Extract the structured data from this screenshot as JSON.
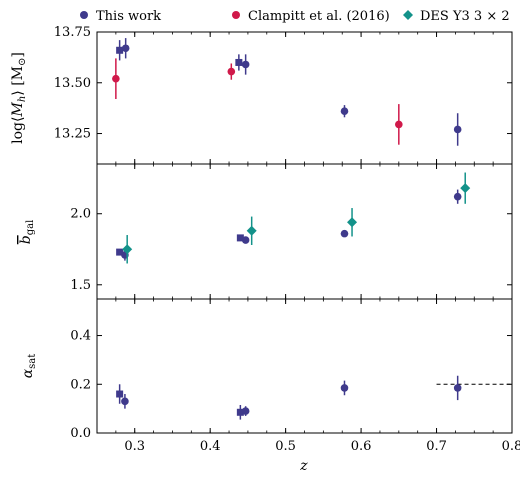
{
  "legend": [
    {
      "name": "This work",
      "color": "#3f3a8c",
      "marker": "circle"
    },
    {
      "name": "Clampitt et al. (2016)",
      "color": "#d0194a",
      "marker": "circle"
    },
    {
      "name": "DES Y3 3 × 2",
      "color": "#13928a",
      "marker": "diamond"
    }
  ],
  "chart_data": [
    {
      "type": "scatter",
      "panel": "top",
      "ylabel": "log⟨M_h⟩ [M⊙]",
      "xlabel": "",
      "xlim": [
        0.25,
        0.8
      ],
      "ylim": [
        13.1,
        13.75
      ],
      "yticks": [
        "13.25",
        "13.50",
        "13.75"
      ],
      "series": [
        {
          "name": "This work",
          "marker": "square",
          "color": "#3f3a8c",
          "points": [
            {
              "x": 0.28,
              "y": 13.66,
              "err": 0.05
            },
            {
              "x": 0.438,
              "y": 13.6,
              "err": 0.04
            }
          ]
        },
        {
          "name": "This work",
          "marker": "circle",
          "color": "#3f3a8c",
          "points": [
            {
              "x": 0.288,
              "y": 13.67,
              "err": 0.05
            },
            {
              "x": 0.447,
              "y": 13.59,
              "err": 0.05
            },
            {
              "x": 0.578,
              "y": 13.36,
              "err": 0.03
            },
            {
              "x": 0.728,
              "y": 13.27,
              "err": 0.08
            }
          ]
        },
        {
          "name": "Clampitt et al. (2016)",
          "marker": "circle",
          "color": "#d0194a",
          "points": [
            {
              "x": 0.275,
              "y": 13.52,
              "err": 0.1
            },
            {
              "x": 0.428,
              "y": 13.555,
              "err": 0.04
            },
            {
              "x": 0.65,
              "y": 13.295,
              "err": 0.1
            }
          ]
        }
      ]
    },
    {
      "type": "scatter",
      "panel": "middle",
      "ylabel": "b̄_gal",
      "xlabel": "",
      "xlim": [
        0.25,
        0.8
      ],
      "ylim": [
        1.4,
        2.35
      ],
      "yticks": [
        "1.5",
        "2.0"
      ],
      "series": [
        {
          "name": "This work",
          "marker": "square",
          "color": "#3f3a8c",
          "points": [
            {
              "x": 0.28,
              "y": 1.73,
              "err": 0.02
            },
            {
              "x": 0.44,
              "y": 1.83,
              "err": 0.02
            }
          ]
        },
        {
          "name": "This work",
          "marker": "circle",
          "color": "#3f3a8c",
          "points": [
            {
              "x": 0.287,
              "y": 1.71,
              "err": 0.04
            },
            {
              "x": 0.447,
              "y": 1.815,
              "err": 0.02
            },
            {
              "x": 0.578,
              "y": 1.86,
              "err": 0.02
            },
            {
              "x": 0.728,
              "y": 2.12,
              "err": 0.05
            }
          ]
        },
        {
          "name": "DES Y3 3 × 2",
          "marker": "diamond",
          "color": "#13928a",
          "points": [
            {
              "x": 0.29,
              "y": 1.75,
              "err": 0.1
            },
            {
              "x": 0.455,
              "y": 1.88,
              "err": 0.1
            },
            {
              "x": 0.588,
              "y": 1.94,
              "err": 0.1
            },
            {
              "x": 0.738,
              "y": 2.18,
              "err": 0.11
            }
          ]
        }
      ]
    },
    {
      "type": "scatter",
      "panel": "bottom",
      "ylabel": "α_sat",
      "xlabel": "z",
      "xlim": [
        0.25,
        0.8
      ],
      "ylim": [
        0.0,
        0.55
      ],
      "yticks": [
        "0.0",
        "0.2",
        "0.4"
      ],
      "xticks": [
        "0.3",
        "0.4",
        "0.5",
        "0.6",
        "0.7",
        "0.8"
      ],
      "hline": {
        "y": 0.2,
        "xmin": 0.7,
        "xmax": 0.8,
        "style": "dashed"
      },
      "series": [
        {
          "name": "This work",
          "marker": "square",
          "color": "#3f3a8c",
          "points": [
            {
              "x": 0.28,
              "y": 0.16,
              "err": 0.04
            },
            {
              "x": 0.44,
              "y": 0.085,
              "err": 0.03
            }
          ]
        },
        {
          "name": "This work",
          "marker": "circle",
          "color": "#3f3a8c",
          "points": [
            {
              "x": 0.287,
              "y": 0.13,
              "err": 0.03
            },
            {
              "x": 0.447,
              "y": 0.09,
              "err": 0.02
            },
            {
              "x": 0.578,
              "y": 0.185,
              "err": 0.03
            },
            {
              "x": 0.728,
              "y": 0.185,
              "err": 0.05
            }
          ]
        }
      ]
    }
  ]
}
